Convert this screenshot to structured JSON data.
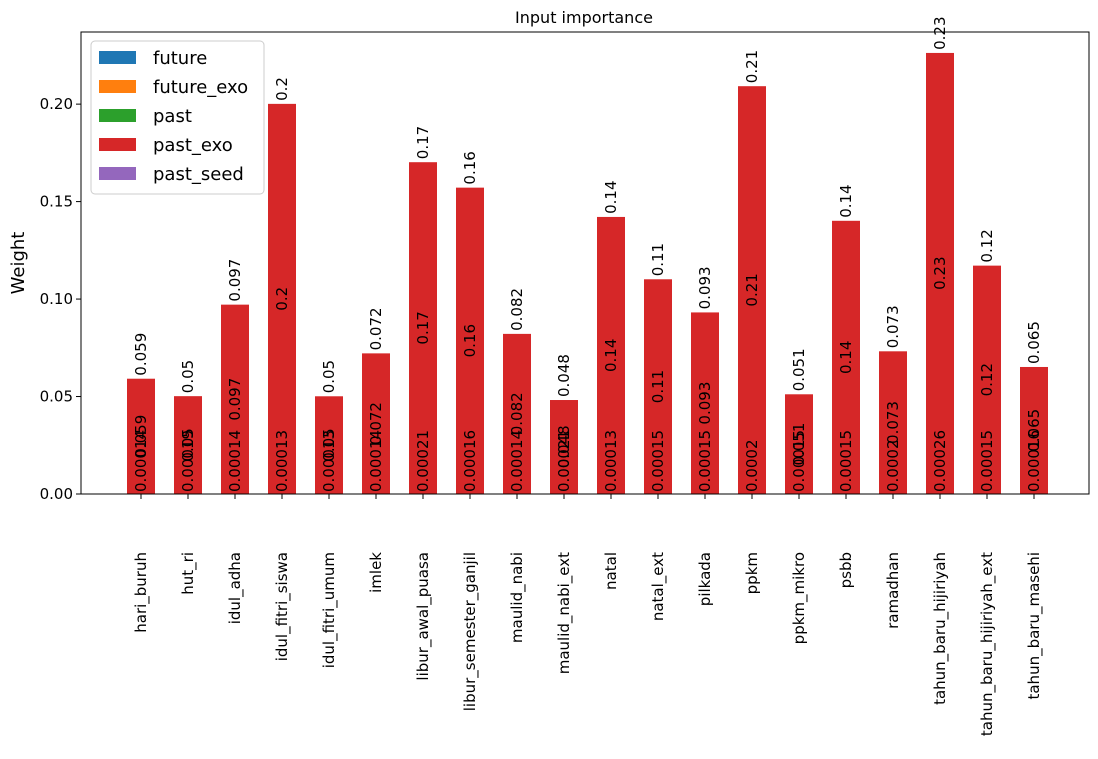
{
  "chart_data": {
    "type": "bar",
    "title": "Input importance",
    "xlabel": "",
    "ylabel": "Weight",
    "ylim": [
      0,
      0.237
    ],
    "yticks": [
      "0.00",
      "0.05",
      "0.10",
      "0.15",
      "0.20"
    ],
    "ytick_values": [
      0,
      0.05,
      0.1,
      0.15,
      0.2
    ],
    "grid": false,
    "legend_position": "top-left",
    "stacked": true,
    "categories": [
      "hari_buruh",
      "hut_ri",
      "idul_adha",
      "idul_fitri_siswa",
      "idul_fitri_umum",
      "imlek",
      "libur_awal_puasa",
      "libur_semester_ganjil",
      "maulid_nabi",
      "maulid_nabi_ext",
      "natal",
      "natal_ext",
      "pilkada",
      "ppkm",
      "ppkm_mikro",
      "psbb",
      "ramadhan",
      "tahun_baru_hijiriyah",
      "tahun_baru_hijiriyah_ext",
      "tahun_baru_masehi"
    ],
    "series": [
      {
        "name": "future",
        "color": "#1f77b4",
        "values": [
          0,
          0,
          0,
          0,
          0,
          0,
          0,
          0,
          0,
          0,
          0,
          0,
          0,
          0,
          0,
          0,
          0,
          0,
          0,
          0
        ],
        "labels": [
          "",
          "",
          "",
          "",
          "",
          "",
          "",
          "",
          "",
          "",
          "",
          "",
          "",
          "",
          "",
          "",
          "",
          "",
          "",
          ""
        ]
      },
      {
        "name": "future_exo",
        "color": "#ff7f0e",
        "values": [
          0,
          0,
          0,
          0,
          0,
          0,
          0,
          0,
          0,
          0,
          0,
          0,
          0,
          0,
          0,
          0,
          0,
          0,
          0,
          0
        ],
        "labels": [
          "",
          "",
          "",
          "",
          "",
          "",
          "",
          "",
          "",
          "",
          "",
          "",
          "",
          "",
          "",
          "",
          "",
          "",
          "",
          ""
        ]
      },
      {
        "name": "past",
        "color": "#2ca02c",
        "values": [
          0.00014,
          0.00019,
          0.00014,
          0.00013,
          0.00013,
          0.00014,
          0.00021,
          0.00016,
          0.00014,
          0.00021,
          0.00013,
          0.00015,
          0.00015,
          0.0002,
          0.00015,
          0.00015,
          0.0002,
          0.00026,
          0.00015,
          0.00016
        ],
        "labels": [
          "0.00014",
          "0.00019",
          "0.00014",
          "0.00013",
          "0.00013",
          "0.00014",
          "0.00021",
          "0.00016",
          "0.00014",
          "0.00021",
          "0.00013",
          "0.00015",
          "0.00015",
          "0.0002",
          "0.00015",
          "0.00015",
          "0.0002",
          "0.00026",
          "0.00015",
          "0.00016"
        ]
      },
      {
        "name": "past_exo",
        "color": "#d62728",
        "values": [
          0.059,
          0.05,
          0.097,
          0.2,
          0.05,
          0.072,
          0.17,
          0.157,
          0.082,
          0.048,
          0.142,
          0.11,
          0.093,
          0.209,
          0.051,
          0.14,
          0.073,
          0.226,
          0.117,
          0.065
        ],
        "labels": [
          "0.059",
          "0.05",
          "0.097",
          "0.2",
          "0.05",
          "0.072",
          "0.17",
          "0.16",
          "0.082",
          "0.048",
          "0.14",
          "0.11",
          "0.093",
          "0.21",
          "0.051",
          "0.14",
          "0.073",
          "0.23",
          "0.12",
          "0.065"
        ]
      },
      {
        "name": "past_seed",
        "color": "#9467bd",
        "values": [
          0,
          0,
          0,
          0,
          0,
          0,
          0,
          0,
          0,
          0,
          0,
          0,
          0,
          0,
          0,
          0,
          0,
          0,
          0,
          0
        ],
        "labels": [
          "",
          "",
          "",
          "",
          "",
          "",
          "",
          "",
          "",
          "",
          "",
          "",
          "",
          "",
          "",
          "",
          "",
          "",
          "",
          ""
        ]
      }
    ],
    "total_labels": [
      "0.059",
      "0.05",
      "0.097",
      "0.2",
      "0.05",
      "0.072",
      "0.17",
      "0.16",
      "0.082",
      "0.048",
      "0.14",
      "0.11",
      "0.093",
      "0.21",
      "0.051",
      "0.14",
      "0.073",
      "0.23",
      "0.12",
      "0.065"
    ]
  }
}
